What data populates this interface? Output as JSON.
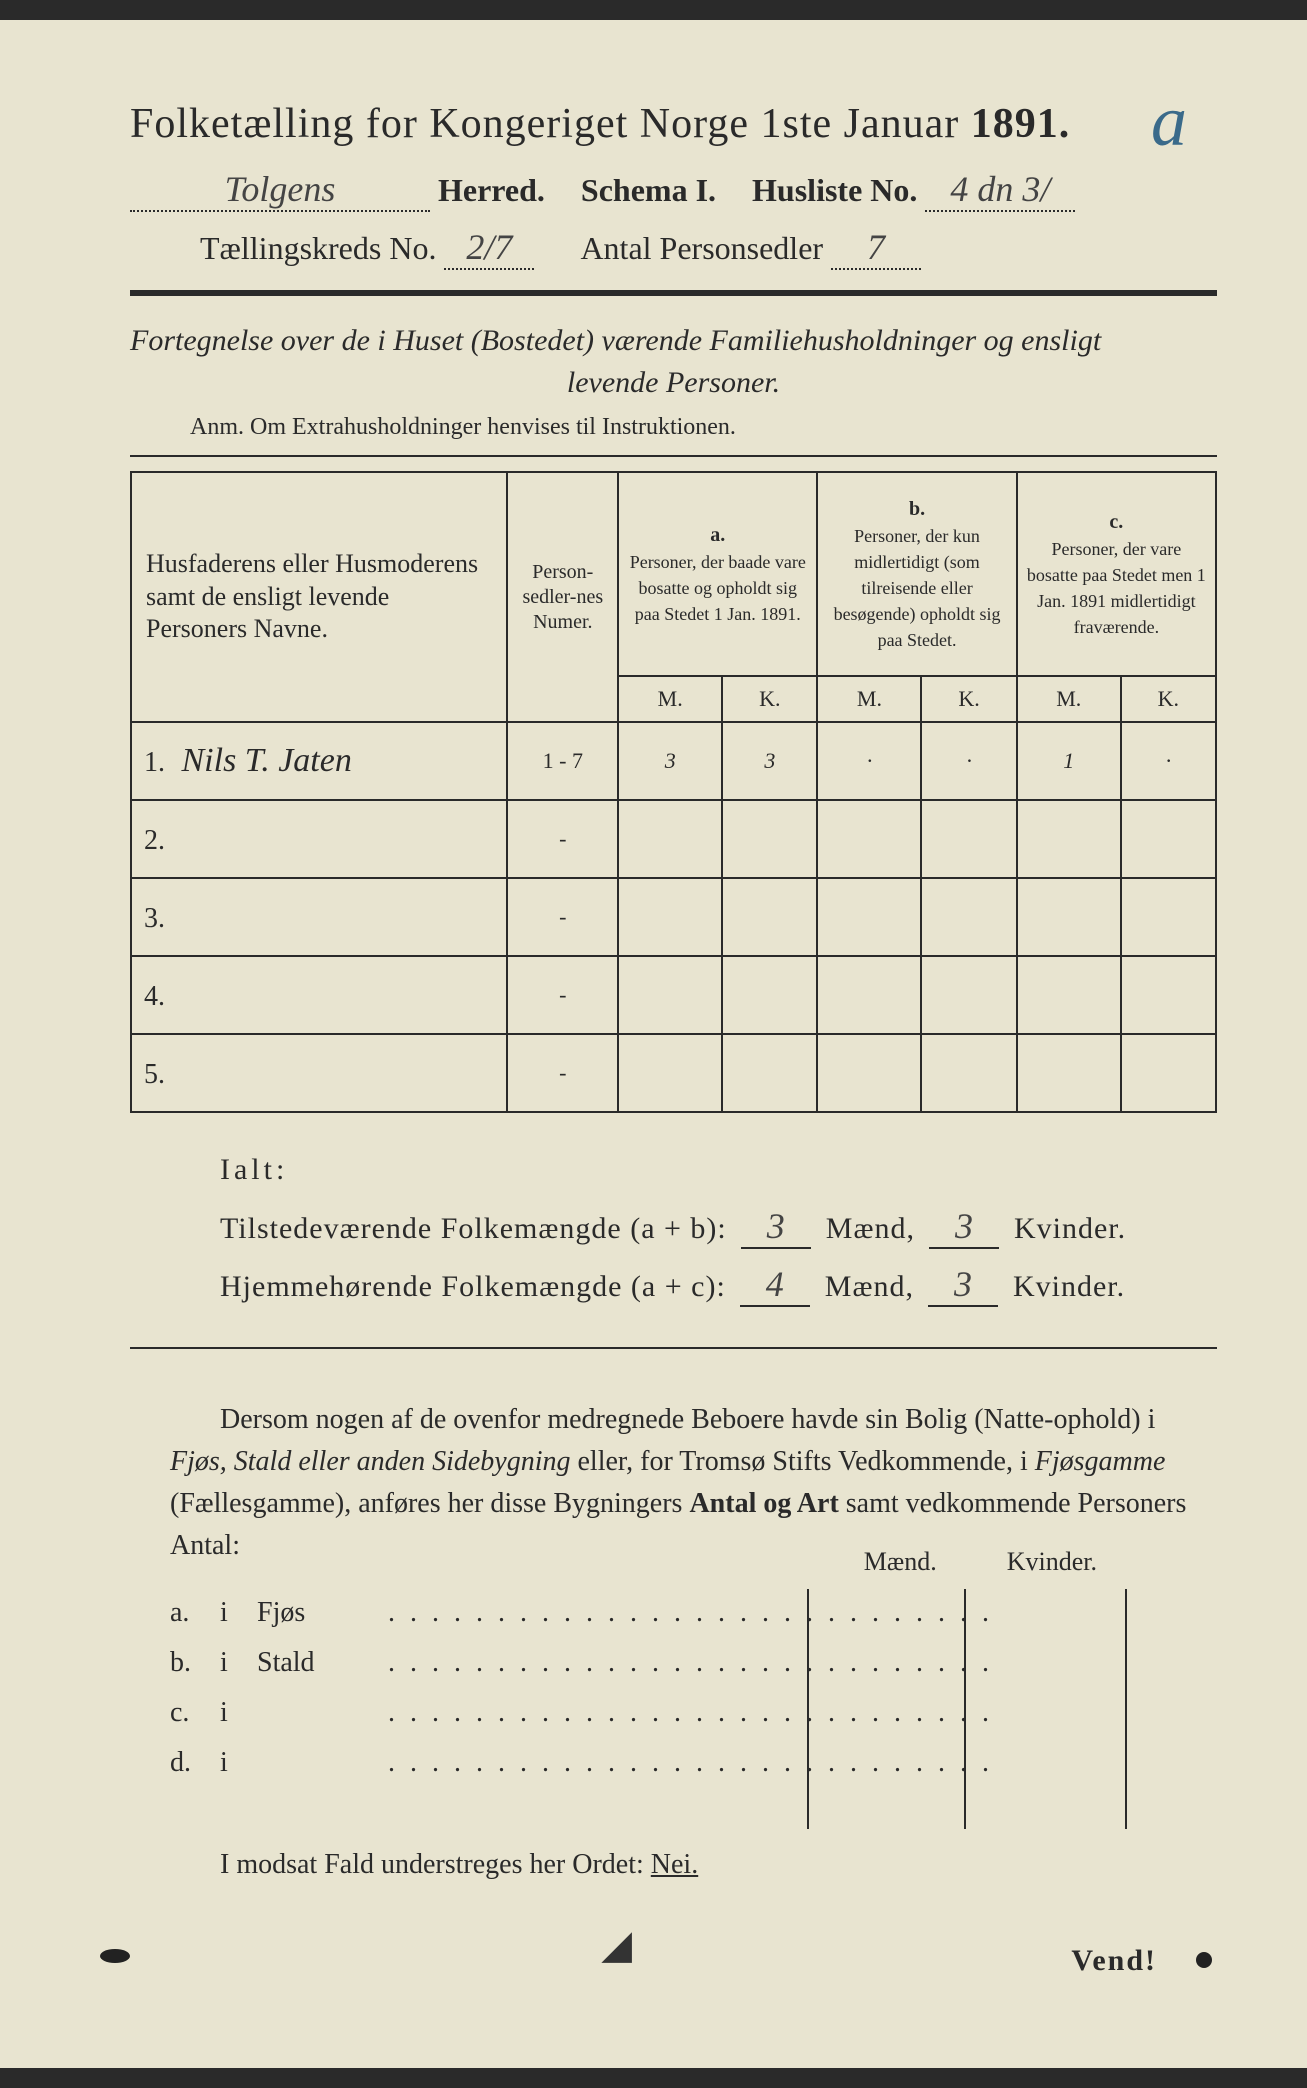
{
  "corner_mark": "a",
  "title": {
    "prefix": "Folketælling for Kongeriget Norge 1ste Januar",
    "year": "1891."
  },
  "header": {
    "herred_value": "Tolgens",
    "herred_label": "Herred.",
    "schema_label": "Schema I.",
    "husliste_label": "Husliste No.",
    "husliste_value": "4 dn 3/",
    "kreds_label": "Tællingskreds No.",
    "kreds_value": "2/7",
    "antal_label": "Antal Personsedler",
    "antal_value": "7"
  },
  "subtitle_line1": "Fortegnelse over de i Huset (Bostedet) værende Familiehusholdninger og ensligt",
  "subtitle_line2": "levende Personer.",
  "anm": "Anm.  Om Extrahusholdninger henvises til Instruktionen.",
  "table": {
    "col_name": "Husfaderens eller Husmoderens samt de ensligt levende Personers Navne.",
    "col_num": "Person-sedler-nes Numer.",
    "col_a_label": "a.",
    "col_a": "Personer, der baade vare bosatte og opholdt sig paa Stedet 1 Jan. 1891.",
    "col_b_label": "b.",
    "col_b": "Personer, der kun midlertidigt (som tilreisende eller besøgende) opholdt sig paa Stedet.",
    "col_c_label": "c.",
    "col_c": "Personer, der vare bosatte paa Stedet men 1 Jan. 1891 midlertidigt fraværende.",
    "M": "M.",
    "K": "K.",
    "rows": [
      {
        "n": "1.",
        "name": "Nils T. Jaten",
        "num": "1 - 7",
        "aM": "3",
        "aK": "3",
        "bM": "·",
        "bK": "·",
        "cM": "1",
        "cK": "·"
      },
      {
        "n": "2.",
        "name": "",
        "num": "-",
        "aM": "",
        "aK": "",
        "bM": "",
        "bK": "",
        "cM": "",
        "cK": ""
      },
      {
        "n": "3.",
        "name": "",
        "num": "-",
        "aM": "",
        "aK": "",
        "bM": "",
        "bK": "",
        "cM": "",
        "cK": ""
      },
      {
        "n": "4.",
        "name": "",
        "num": "-",
        "aM": "",
        "aK": "",
        "bM": "",
        "bK": "",
        "cM": "",
        "cK": ""
      },
      {
        "n": "5.",
        "name": "",
        "num": "-",
        "aM": "",
        "aK": "",
        "bM": "",
        "bK": "",
        "cM": "",
        "cK": ""
      }
    ]
  },
  "totals": {
    "ialt": "Ialt:",
    "line1_label": "Tilstedeværende Folkemængde (a + b):",
    "line1_m": "3",
    "line1_k": "3",
    "line2_label": "Hjemmehørende Folkemængde (a + c):",
    "line2_m": "4",
    "line2_k": "3",
    "maend": "Mænd,",
    "kvinder": "Kvinder."
  },
  "para": "Dersom nogen af de ovenfor medregnede Beboere havde sin Bolig (Natte-ophold) i Fjøs, Stald eller anden Sidebygning eller, for Tromsø Stifts Vedkommende, i Fjøsgamme (Fællesgamme), anføres her disse Bygningers Antal og Art samt vedkommende Personers Antal:",
  "buildings": {
    "maend": "Mænd.",
    "kvinder": "Kvinder.",
    "rows": [
      {
        "lbl": "a.",
        "i": "i",
        "name": "Fjøs"
      },
      {
        "lbl": "b.",
        "i": "i",
        "name": "Stald"
      },
      {
        "lbl": "c.",
        "i": "i",
        "name": ""
      },
      {
        "lbl": "d.",
        "i": "i",
        "name": ""
      }
    ]
  },
  "footer": "I modsat Fald understreges her Ordet:",
  "footer_word": "Nei.",
  "vend": "Vend!"
}
